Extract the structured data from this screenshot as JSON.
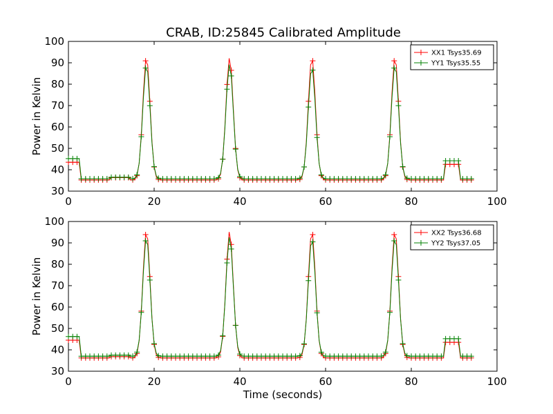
{
  "chart_data": [
    {
      "type": "line",
      "title": "CRAB, ID:25845 Calibrated Amplitude",
      "xlabel": "",
      "ylabel": "Power in Kelvin",
      "xlim": [
        0,
        100
      ],
      "ylim": [
        30,
        100
      ],
      "xticks": [
        0,
        20,
        40,
        60,
        80,
        100
      ],
      "yticks": [
        30,
        40,
        50,
        60,
        70,
        80,
        90,
        100
      ],
      "legend": "top-right",
      "grid": false,
      "baseline": 35,
      "marker": "+",
      "series": [
        {
          "name": "XX1 Tsys35.69",
          "color": "#ff0000",
          "baseline": 35.2,
          "segments": [
            [
              0,
              2.8,
              43.5
            ],
            [
              88,
              91,
              42.5
            ]
          ],
          "peaks": [
            [
              18.2,
              92.5
            ],
            [
              37.6,
              92.5
            ],
            [
              56.8,
              92.5
            ],
            [
              76.2,
              92.5
            ]
          ],
          "bump": [
            [
              10,
              14,
              36.3
            ]
          ]
        },
        {
          "name": "YY1 Tsys35.55",
          "color": "#008000",
          "baseline": 35.8,
          "segments": [
            [
              0,
              2.8,
              45.2
            ],
            [
              88,
              91,
              44.2
            ]
          ],
          "peaks": [
            [
              18.2,
              89
            ],
            [
              37.6,
              89.5
            ],
            [
              56.8,
              88
            ],
            [
              76.2,
              89
            ]
          ],
          "bump": [
            [
              10,
              14,
              36.5
            ]
          ]
        }
      ]
    },
    {
      "type": "line",
      "title": "",
      "xlabel": "Time (seconds)",
      "ylabel": "Power in Kelvin",
      "xlim": [
        0,
        100
      ],
      "ylim": [
        30,
        100
      ],
      "xticks": [
        0,
        20,
        40,
        60,
        80,
        100
      ],
      "yticks": [
        30,
        40,
        50,
        60,
        70,
        80,
        90,
        100
      ],
      "legend": "top-right",
      "grid": false,
      "marker": "+",
      "series": [
        {
          "name": "XX2 Tsys36.68",
          "color": "#ff0000",
          "baseline": 36.2,
          "segments": [
            [
              0,
              2.8,
              44.5
            ],
            [
              88,
              91,
              43.5
            ]
          ],
          "peaks": [
            [
              18.2,
              95.5
            ],
            [
              37.6,
              95.5
            ],
            [
              56.8,
              95.5
            ],
            [
              76.2,
              95.5
            ]
          ],
          "bump": [
            [
              10,
              14,
              36.8
            ]
          ]
        },
        {
          "name": "YY2 Tsys37.05",
          "color": "#008000",
          "baseline": 37.0,
          "segments": [
            [
              0,
              2.8,
              46.2
            ],
            [
              88,
              91,
              45.2
            ]
          ],
          "peaks": [
            [
              18.2,
              92.5
            ],
            [
              37.6,
              93
            ],
            [
              56.8,
              92
            ],
            [
              76.2,
              92.5
            ]
          ],
          "bump": [
            [
              10,
              14,
              37.5
            ]
          ]
        }
      ]
    }
  ]
}
